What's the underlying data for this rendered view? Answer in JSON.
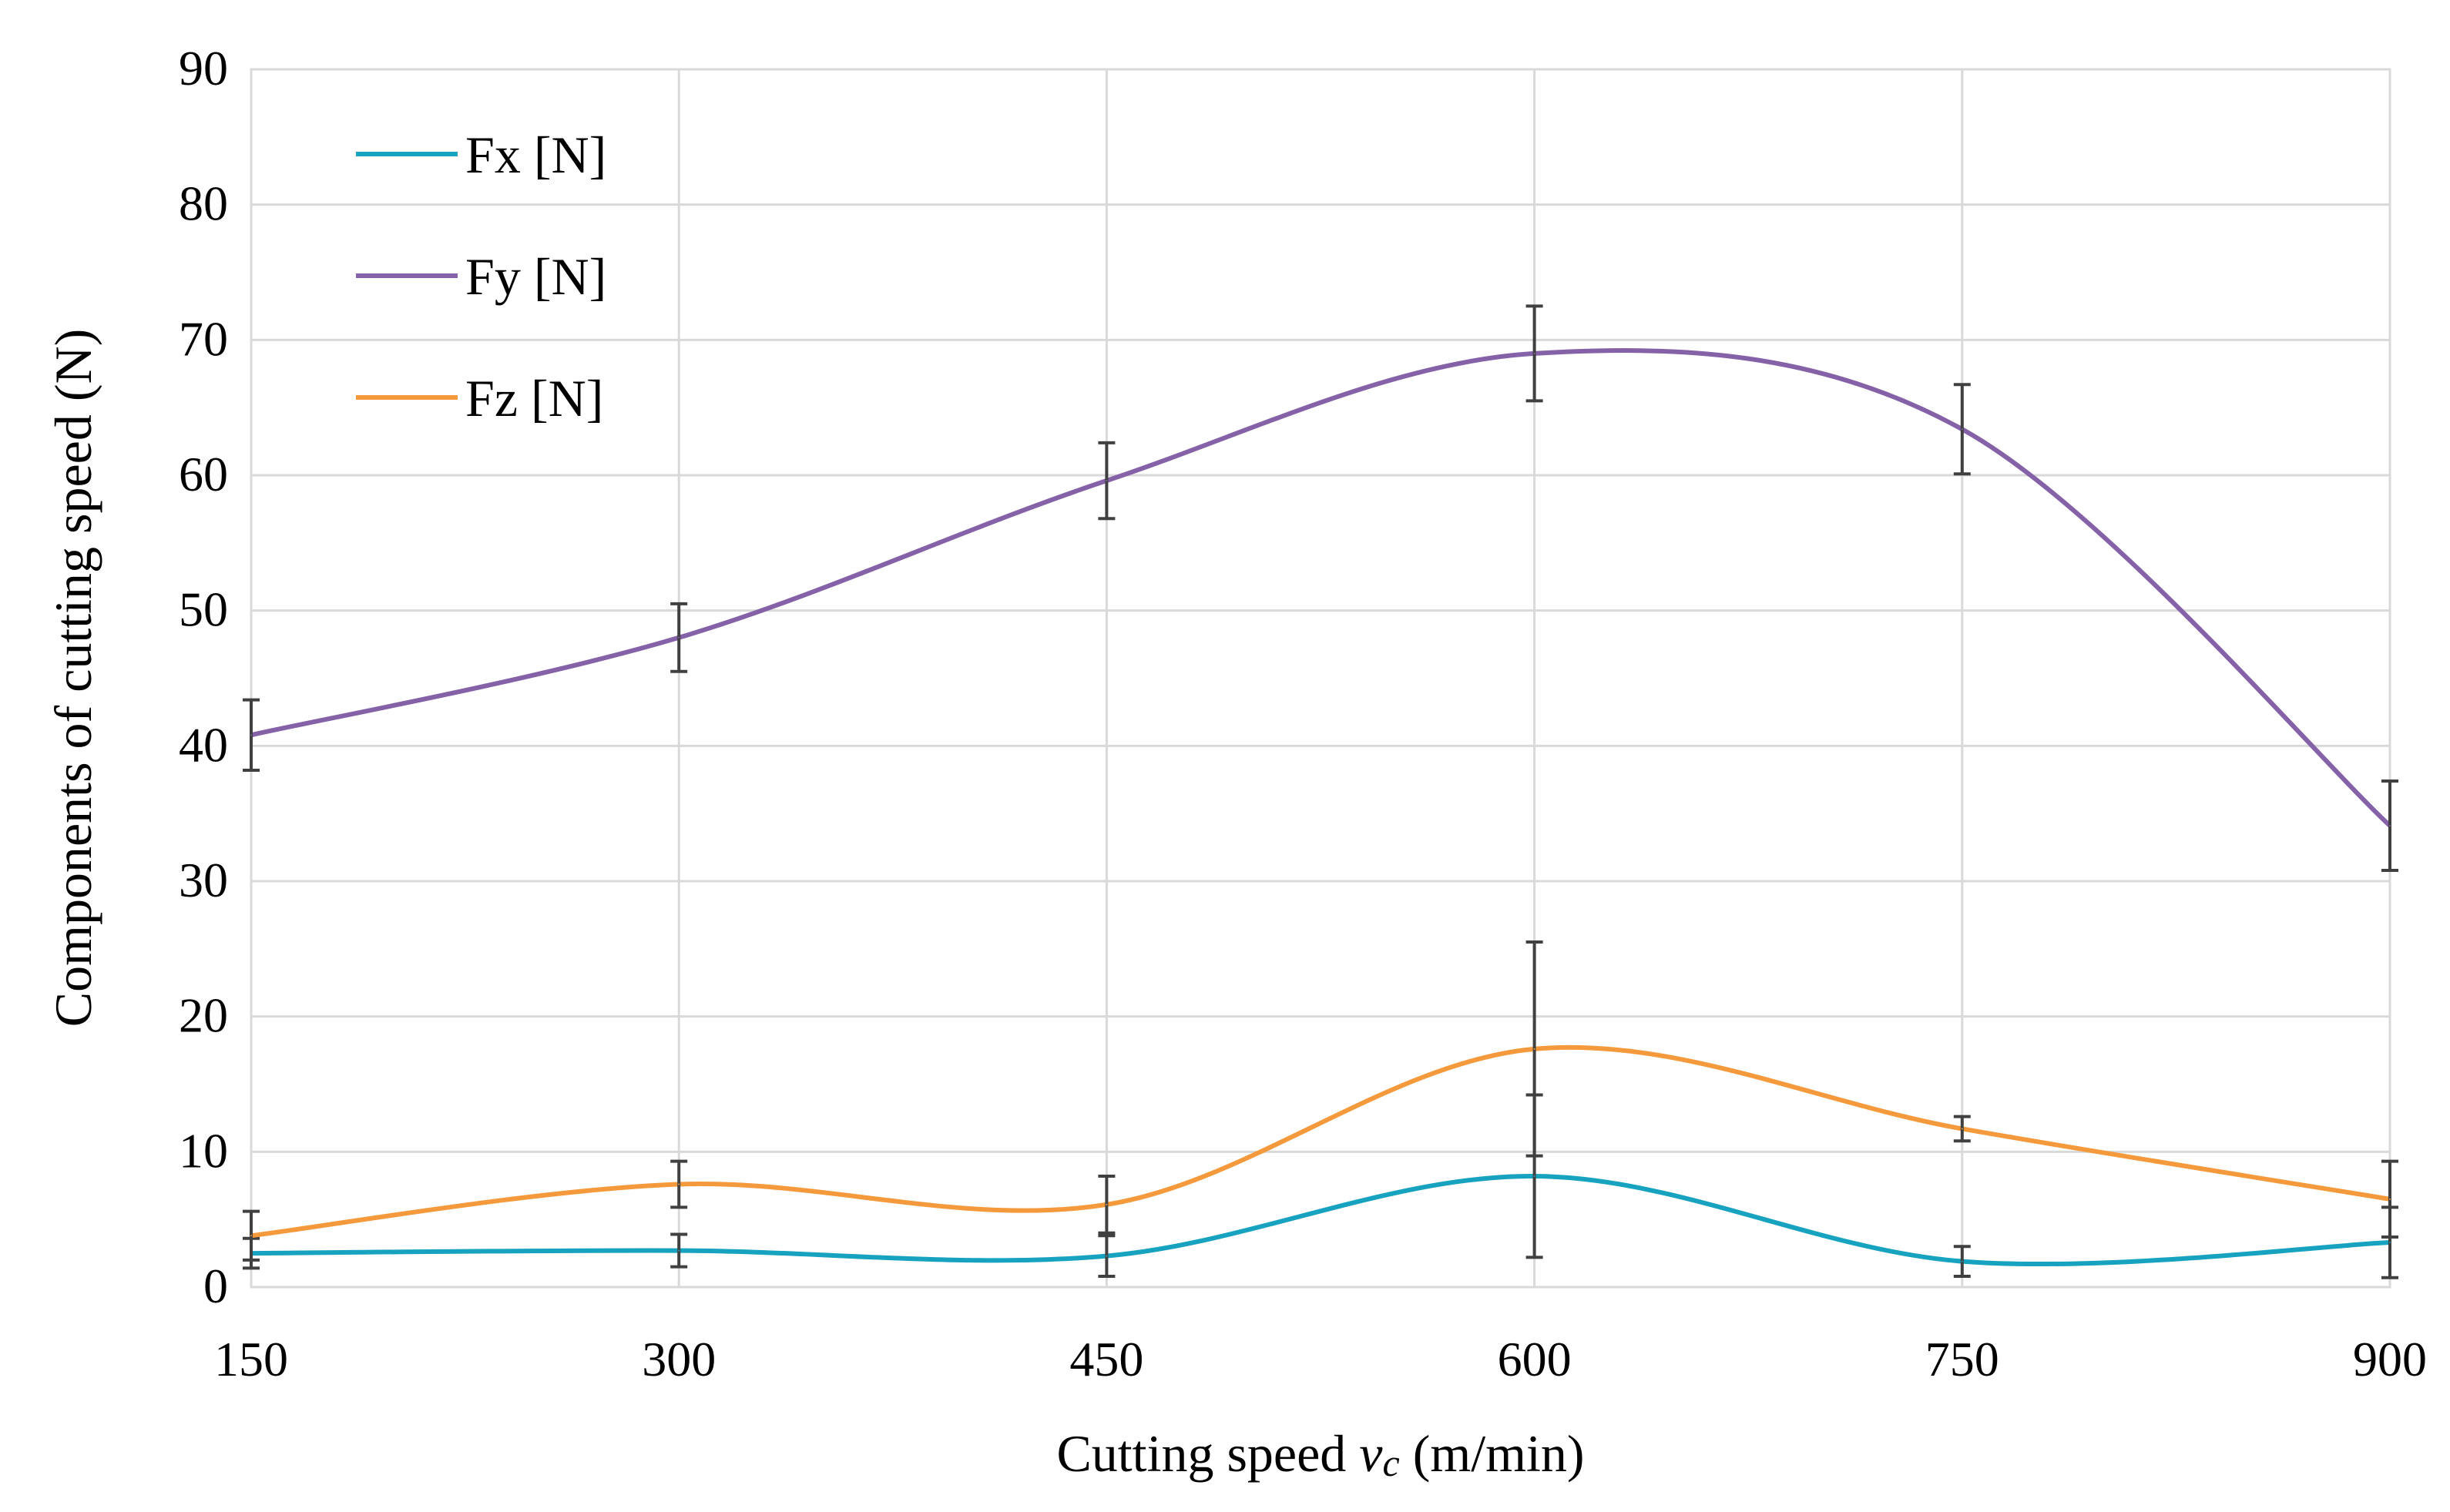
{
  "chart_data": {
    "type": "line",
    "title": "",
    "xlabel_prefix": "Cutting speed ",
    "xlabel_var": "v",
    "xlabel_sub": "c",
    "xlabel_suffix": " (m/min)",
    "ylabel": "Components of cutting speed (N)",
    "x": [
      150,
      300,
      450,
      600,
      750,
      900
    ],
    "x_ticks": [
      150,
      300,
      450,
      600,
      750,
      900
    ],
    "y_ticks": [
      0,
      10,
      20,
      30,
      40,
      50,
      60,
      70,
      80,
      90
    ],
    "xlim": [
      150,
      900
    ],
    "ylim": [
      0,
      90
    ],
    "grid": true,
    "legend_position": "top-left",
    "series": [
      {
        "name": "Fx [N]",
        "color": "#17a2c0",
        "values": [
          2.5,
          2.7,
          2.3,
          8.2,
          1.9,
          3.3
        ],
        "errors": [
          1.1,
          1.2,
          1.5,
          6.0,
          1.1,
          2.6
        ]
      },
      {
        "name": "Fy [N]",
        "color": "#8561a8",
        "values": [
          40.8,
          48.0,
          59.6,
          69.0,
          63.4,
          34.1
        ],
        "errors": [
          2.6,
          2.5,
          2.8,
          3.5,
          3.3,
          3.3
        ]
      },
      {
        "name": "Fz [N]",
        "color": "#f59a3c",
        "values": [
          3.8,
          7.6,
          6.1,
          17.6,
          11.7,
          6.5
        ],
        "errors": [
          1.8,
          1.7,
          2.1,
          7.9,
          0.9,
          2.8
        ]
      }
    ]
  }
}
